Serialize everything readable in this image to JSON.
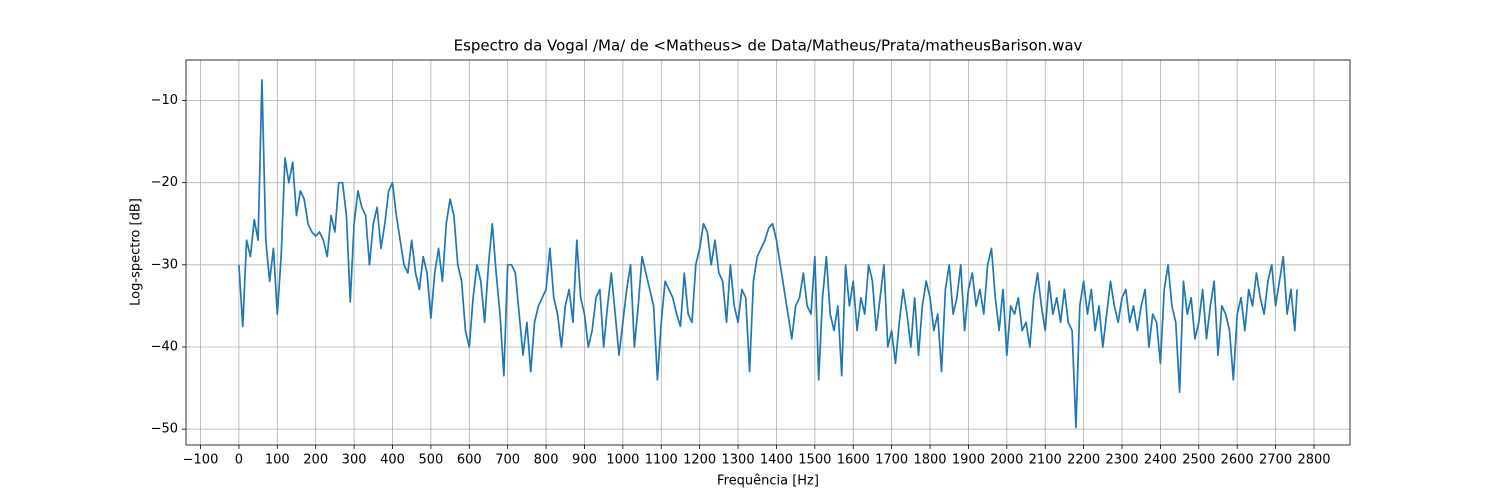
{
  "chart_data": {
    "type": "line",
    "title": "Espectro da Vogal /Ma/ de <Matheus> de Data/Matheus/Prata/matheusBarison.wav",
    "xlabel": "Frequência [Hz]",
    "ylabel": "Log-spectro [dB]",
    "grid": true,
    "xlim": [
      -137.8,
      2893.8
    ],
    "ylim": [
      -51.93,
      -5.07
    ],
    "xticks": [
      {
        "value": -100,
        "label": "−100"
      },
      0,
      100,
      200,
      300,
      400,
      500,
      600,
      700,
      800,
      900,
      1000,
      1100,
      1200,
      1300,
      1400,
      1500,
      1600,
      1700,
      1800,
      1900,
      2000,
      2100,
      2200,
      2300,
      2400,
      2500,
      2600,
      2700,
      2800
    ],
    "yticks": [
      {
        "value": -50,
        "label": "−50"
      },
      {
        "value": -40,
        "label": "−40"
      },
      {
        "value": -30,
        "label": "−30"
      },
      {
        "value": -20,
        "label": "−20"
      },
      {
        "value": -10,
        "label": "−10"
      }
    ],
    "series": [
      {
        "color": "#1f77b4",
        "x": [
          0,
          10,
          20,
          30,
          40,
          50,
          60,
          70,
          80,
          90,
          100,
          110,
          120,
          130,
          140,
          150,
          160,
          170,
          180,
          190,
          200,
          210,
          220,
          230,
          240,
          250,
          260,
          270,
          280,
          290,
          300,
          310,
          320,
          330,
          340,
          350,
          360,
          370,
          380,
          390,
          400,
          410,
          420,
          430,
          440,
          450,
          460,
          470,
          480,
          490,
          500,
          510,
          520,
          530,
          540,
          550,
          560,
          570,
          580,
          590,
          600,
          610,
          620,
          630,
          640,
          650,
          660,
          670,
          680,
          690,
          700,
          710,
          720,
          730,
          740,
          750,
          760,
          770,
          780,
          790,
          800,
          810,
          820,
          830,
          840,
          850,
          860,
          870,
          880,
          890,
          900,
          910,
          920,
          930,
          940,
          950,
          960,
          970,
          980,
          990,
          1000,
          1010,
          1020,
          1030,
          1040,
          1050,
          1060,
          1070,
          1080,
          1090,
          1100,
          1110,
          1120,
          1130,
          1140,
          1150,
          1160,
          1170,
          1180,
          1190,
          1200,
          1210,
          1220,
          1230,
          1240,
          1250,
          1260,
          1270,
          1280,
          1290,
          1300,
          1310,
          1320,
          1330,
          1340,
          1350,
          1360,
          1370,
          1380,
          1390,
          1400,
          1410,
          1420,
          1430,
          1440,
          1450,
          1460,
          1470,
          1480,
          1490,
          1500,
          1510,
          1520,
          1530,
          1540,
          1550,
          1560,
          1570,
          1580,
          1590,
          1600,
          1610,
          1620,
          1630,
          1640,
          1650,
          1660,
          1670,
          1680,
          1690,
          1700,
          1710,
          1720,
          1730,
          1740,
          1750,
          1760,
          1770,
          1780,
          1790,
          1800,
          1810,
          1820,
          1830,
          1840,
          1850,
          1860,
          1870,
          1880,
          1890,
          1900,
          1910,
          1920,
          1930,
          1940,
          1950,
          1960,
          1970,
          1980,
          1990,
          2000,
          2010,
          2020,
          2030,
          2040,
          2050,
          2060,
          2070,
          2080,
          2090,
          2100,
          2110,
          2120,
          2130,
          2140,
          2150,
          2160,
          2170,
          2180,
          2190,
          2200,
          2210,
          2220,
          2230,
          2240,
          2250,
          2260,
          2270,
          2280,
          2290,
          2300,
          2310,
          2320,
          2330,
          2340,
          2350,
          2360,
          2370,
          2380,
          2390,
          2400,
          2410,
          2420,
          2430,
          2440,
          2450,
          2460,
          2470,
          2480,
          2490,
          2500,
          2510,
          2520,
          2530,
          2540,
          2550,
          2560,
          2570,
          2580,
          2590,
          2600,
          2610,
          2620,
          2630,
          2640,
          2650,
          2660,
          2670,
          2680,
          2690,
          2700,
          2710,
          2720,
          2730,
          2740,
          2750,
          2756
        ],
        "values": [
          -30,
          -37.5,
          -27,
          -29,
          -24.5,
          -27,
          -7.5,
          -27,
          -32,
          -28,
          -36,
          -29,
          -17,
          -20,
          -17.5,
          -24,
          -21,
          -22,
          -25,
          -26,
          -26.5,
          -26,
          -27,
          -29,
          -24,
          -26,
          -20,
          -20,
          -24,
          -34.5,
          -25,
          -21,
          -23,
          -24,
          -30,
          -25,
          -23,
          -28,
          -25,
          -21,
          -20,
          -24,
          -27,
          -30,
          -31,
          -27,
          -31,
          -33,
          -29,
          -31,
          -36.5,
          -31,
          -28,
          -32,
          -25,
          -22,
          -24,
          -30,
          -32,
          -38,
          -40,
          -34,
          -30,
          -32,
          -37,
          -30,
          -25,
          -31,
          -36,
          -43.5,
          -30,
          -30,
          -31,
          -36,
          -41,
          -37,
          -43,
          -37,
          -35,
          -34,
          -33,
          -28,
          -34,
          -36,
          -40,
          -35,
          -33,
          -37,
          -27,
          -34,
          -36,
          -40,
          -38,
          -34,
          -33,
          -40,
          -35,
          -31,
          -36,
          -41,
          -37,
          -33,
          -30,
          -40,
          -35,
          -29,
          -31,
          -33,
          -35,
          -44,
          -37,
          -32,
          -33,
          -34,
          -36,
          -37.5,
          -31,
          -36,
          -37,
          -30,
          -28,
          -25,
          -26,
          -30,
          -27,
          -31,
          -32,
          -37,
          -30,
          -35,
          -37,
          -33,
          -34,
          -43,
          -32,
          -29,
          -28,
          -27,
          -25.5,
          -25,
          -27,
          -30,
          -33,
          -36,
          -39,
          -35,
          -34,
          -31,
          -35,
          -36,
          -29,
          -44,
          -34,
          -29,
          -36,
          -38,
          -35,
          -43.5,
          -30,
          -35,
          -32,
          -38,
          -34,
          -36,
          -30,
          -32,
          -38,
          -34,
          -30,
          -40,
          -38,
          -42,
          -37,
          -33,
          -36,
          -40,
          -34,
          -41,
          -35,
          -32,
          -34,
          -38,
          -36,
          -43,
          -33,
          -30,
          -36,
          -34,
          -30,
          -38,
          -33,
          -31,
          -35,
          -33,
          -36,
          -30,
          -28,
          -34,
          -38,
          -33,
          -41,
          -35,
          -36,
          -34,
          -38,
          -37,
          -40,
          -34,
          -31,
          -35,
          -38,
          -32,
          -36,
          -34,
          -37,
          -33,
          -37,
          -38,
          -49.8,
          -35,
          -32,
          -36,
          -33,
          -38,
          -35,
          -40,
          -36,
          -32,
          -35,
          -37,
          -34,
          -33,
          -37,
          -35,
          -38,
          -35,
          -33,
          -40,
          -36,
          -37,
          -42,
          -33,
          -30,
          -35,
          -37,
          -45.5,
          -32,
          -36,
          -34,
          -39,
          -37,
          -33,
          -39,
          -35,
          -32,
          -41,
          -35,
          -36,
          -38,
          -44,
          -36,
          -34,
          -38,
          -33,
          -35,
          -31,
          -34,
          -36,
          -32,
          -30,
          -35,
          -32,
          -29,
          -36,
          -33,
          -38,
          -33
        ]
      }
    ]
  }
}
